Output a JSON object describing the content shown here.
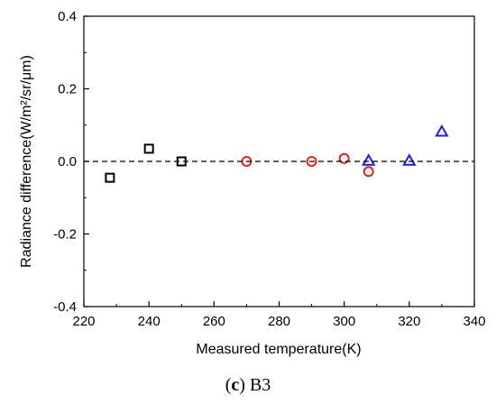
{
  "chart_data": {
    "type": "scatter",
    "title": "",
    "xlabel": "Measured temperature(K)",
    "ylabel": "Radiance difference(W/m²/sr/μm)",
    "xlim": [
      220,
      340
    ],
    "ylim": [
      -0.4,
      0.4
    ],
    "x_ticks": [
      "220",
      "240",
      "260",
      "280",
      "300",
      "320",
      "340"
    ],
    "y_ticks": [
      "-0.4",
      "-0.2",
      "0.0",
      "0.2",
      "0.4"
    ],
    "reference_line": 0.0,
    "grid": false,
    "series": [
      {
        "marker": "square",
        "color": "#000000",
        "x": [
          228,
          240,
          250
        ],
        "y": [
          -0.045,
          0.035,
          0.0
        ]
      },
      {
        "marker": "circle",
        "color": "#e8201b",
        "x": [
          270,
          290,
          300,
          307.5
        ],
        "y": [
          0.0,
          0.0,
          0.008,
          -0.028
        ]
      },
      {
        "marker": "triangle",
        "color": "#1f1fd6",
        "x": [
          307.5,
          320,
          330
        ],
        "y": [
          0.002,
          0.002,
          0.082
        ]
      }
    ]
  },
  "caption": {
    "letter": "c",
    "text": "B3"
  }
}
